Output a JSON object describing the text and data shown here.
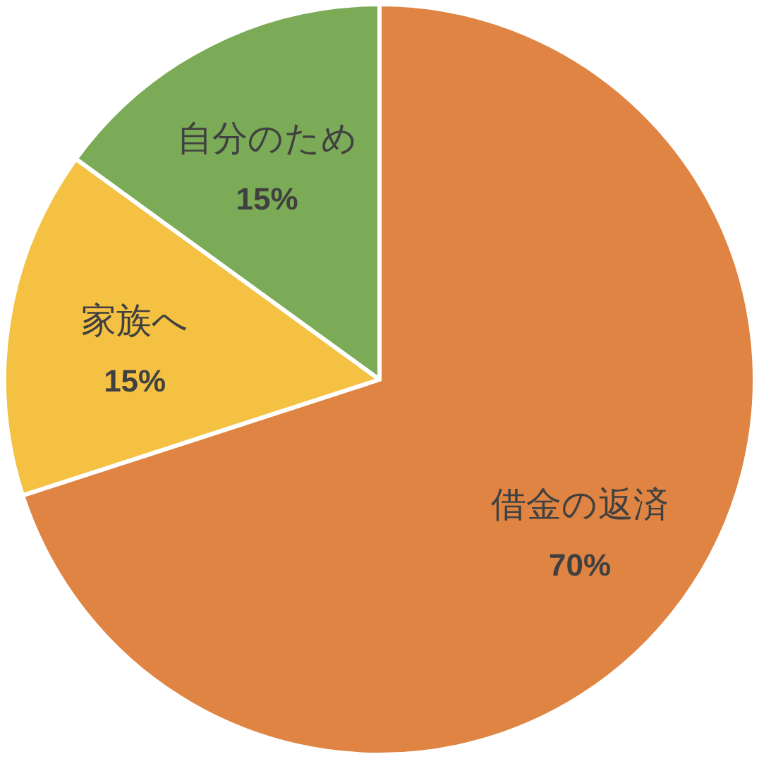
{
  "chart_data": {
    "type": "pie",
    "categories": [
      "借金の返済",
      "家族へ",
      "自分のため"
    ],
    "values": [
      70,
      15,
      15
    ],
    "colors": [
      "#df8443",
      "#f4c143",
      "#7bab56"
    ],
    "value_labels": [
      "70%",
      "15%",
      "15%"
    ]
  }
}
